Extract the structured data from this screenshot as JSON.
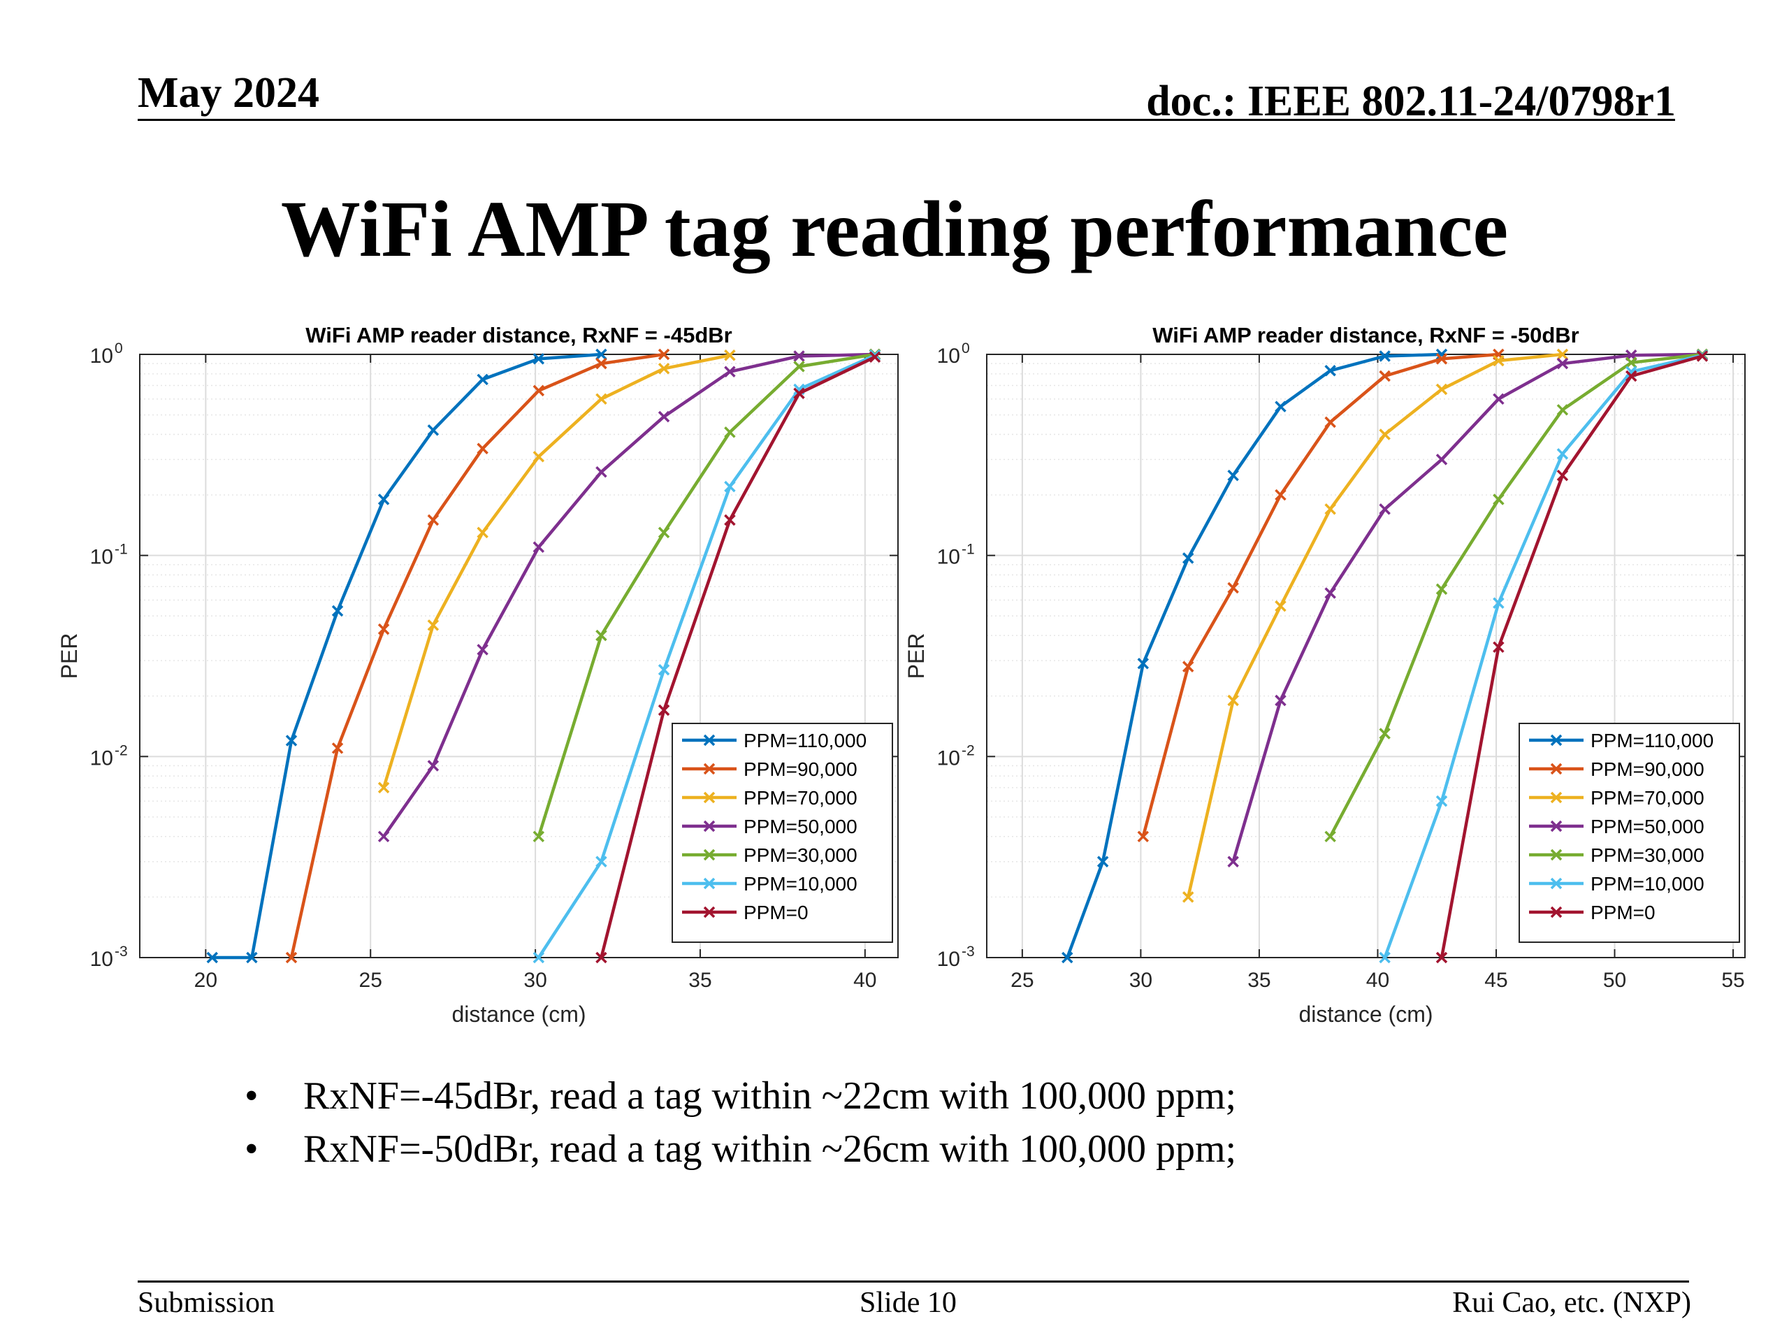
{
  "header": {
    "date": "May 2024",
    "doc": "doc.: IEEE 802.11-24/0798r1"
  },
  "slide_title": "WiFi AMP tag reading performance",
  "bullets": [
    {
      "marker": "•",
      "text": "RxNF=-45dBr, read a tag within ~22cm with 100,000 ppm;"
    },
    {
      "marker": "•",
      "text": "RxNF=-50dBr, read a tag within ~26cm with 100,000 ppm;"
    }
  ],
  "footer": {
    "left": "Submission",
    "center": "Slide 10",
    "right": "Rui Cao, etc. (NXP)"
  },
  "chart_data": [
    {
      "type": "line",
      "title": "WiFi AMP reader distance, RxNF = -45dBr",
      "xlabel": "distance (cm)",
      "ylabel": "PER",
      "xlim": [
        18,
        41
      ],
      "ylim": [
        0.001,
        1
      ],
      "yscale": "log",
      "xticks": [
        "20",
        "25",
        "30",
        "35",
        "40"
      ],
      "yticks": [
        "10",
        "10",
        "10",
        "10"
      ],
      "ytick_exponents": [
        "0",
        "-1",
        "-2",
        "-3"
      ],
      "grid": true,
      "legend_position": "bottom-right",
      "series": [
        {
          "name": "PPM=110,000",
          "color": "#0072BD",
          "x": [
            20.2,
            21.4,
            22.6,
            24.0,
            25.4,
            26.9,
            28.4,
            30.1,
            32.0
          ],
          "y": [
            0.001,
            0.001,
            0.012,
            0.053,
            0.19,
            0.42,
            0.75,
            0.95,
            1.0
          ]
        },
        {
          "name": "PPM=90,000",
          "color": "#D95319",
          "x": [
            22.6,
            24.0,
            25.4,
            26.9,
            28.4,
            30.1,
            32.0,
            33.9
          ],
          "y": [
            0.001,
            0.011,
            0.043,
            0.15,
            0.34,
            0.66,
            0.9,
            1.0
          ]
        },
        {
          "name": "PPM=70,000",
          "color": "#EDB120",
          "x": [
            25.4,
            26.9,
            28.4,
            30.1,
            32.0,
            33.9,
            35.9
          ],
          "y": [
            0.007,
            0.045,
            0.13,
            0.31,
            0.6,
            0.85,
            0.99
          ]
        },
        {
          "name": "PPM=50,000",
          "color": "#7E2F8E",
          "x": [
            25.4,
            26.9,
            28.4,
            30.1,
            32.0,
            33.9,
            35.9,
            38.0,
            40.3
          ],
          "y": [
            0.004,
            0.009,
            0.034,
            0.11,
            0.26,
            0.49,
            0.82,
            0.98,
            1.0
          ]
        },
        {
          "name": "PPM=30,000",
          "color": "#77AC30",
          "x": [
            30.1,
            32.0,
            33.9,
            35.9,
            38.0,
            40.3
          ],
          "y": [
            0.004,
            0.04,
            0.13,
            0.41,
            0.87,
            1.0
          ]
        },
        {
          "name": "PPM=10,000",
          "color": "#4DBEEE",
          "x": [
            30.1,
            32.0,
            33.9,
            35.9,
            38.0,
            40.3
          ],
          "y": [
            0.001,
            0.003,
            0.027,
            0.22,
            0.67,
            0.99
          ]
        },
        {
          "name": "PPM=0",
          "color": "#A2142F",
          "x": [
            32.0,
            33.9,
            35.9,
            38.0,
            40.3
          ],
          "y": [
            0.001,
            0.017,
            0.15,
            0.64,
            0.97
          ]
        }
      ]
    },
    {
      "type": "line",
      "title": "WiFi AMP reader distance, RxNF = -50dBr",
      "xlabel": "distance (cm)",
      "ylabel": "PER",
      "xlim": [
        23.5,
        55.5
      ],
      "ylim": [
        0.001,
        1
      ],
      "yscale": "log",
      "xticks": [
        "25",
        "30",
        "35",
        "40",
        "45",
        "50",
        "55"
      ],
      "yticks": [
        "10",
        "10",
        "10",
        "10"
      ],
      "ytick_exponents": [
        "0",
        "-1",
        "-2",
        "-3"
      ],
      "grid": true,
      "legend_position": "bottom-right",
      "series": [
        {
          "name": "PPM=110,000",
          "color": "#0072BD",
          "x": [
            26.9,
            28.4,
            30.1,
            32.0,
            33.9,
            35.9,
            38.0,
            40.3,
            42.7
          ],
          "y": [
            0.001,
            0.003,
            0.029,
            0.097,
            0.25,
            0.55,
            0.83,
            0.98,
            1.0
          ]
        },
        {
          "name": "PPM=90,000",
          "color": "#D95319",
          "x": [
            30.1,
            32.0,
            33.9,
            35.9,
            38.0,
            40.3,
            42.7,
            45.1
          ],
          "y": [
            0.004,
            0.028,
            0.069,
            0.2,
            0.46,
            0.78,
            0.95,
            1.0
          ]
        },
        {
          "name": "PPM=70,000",
          "color": "#EDB120",
          "x": [
            32.0,
            33.9,
            35.9,
            38.0,
            40.3,
            42.7,
            45.1,
            47.8
          ],
          "y": [
            0.002,
            0.019,
            0.056,
            0.17,
            0.4,
            0.67,
            0.93,
            1.0
          ]
        },
        {
          "name": "PPM=50,000",
          "color": "#7E2F8E",
          "x": [
            33.9,
            35.9,
            38.0,
            40.3,
            42.7,
            45.1,
            47.8,
            50.7,
            53.7
          ],
          "y": [
            0.003,
            0.019,
            0.065,
            0.17,
            0.3,
            0.6,
            0.9,
            0.99,
            1.0
          ]
        },
        {
          "name": "PPM=30,000",
          "color": "#77AC30",
          "x": [
            38.0,
            40.3,
            42.7,
            45.1,
            47.8,
            50.7,
            53.7
          ],
          "y": [
            0.004,
            0.013,
            0.068,
            0.19,
            0.53,
            0.91,
            1.0
          ]
        },
        {
          "name": "PPM=10,000",
          "color": "#4DBEEE",
          "x": [
            40.3,
            42.7,
            45.1,
            47.8,
            50.7,
            53.7
          ],
          "y": [
            0.001,
            0.006,
            0.058,
            0.32,
            0.82,
            0.99
          ]
        },
        {
          "name": "PPM=0",
          "color": "#A2142F",
          "x": [
            42.7,
            45.1,
            47.8,
            50.7,
            53.7
          ],
          "y": [
            0.001,
            0.035,
            0.25,
            0.78,
            0.98
          ]
        }
      ]
    }
  ]
}
